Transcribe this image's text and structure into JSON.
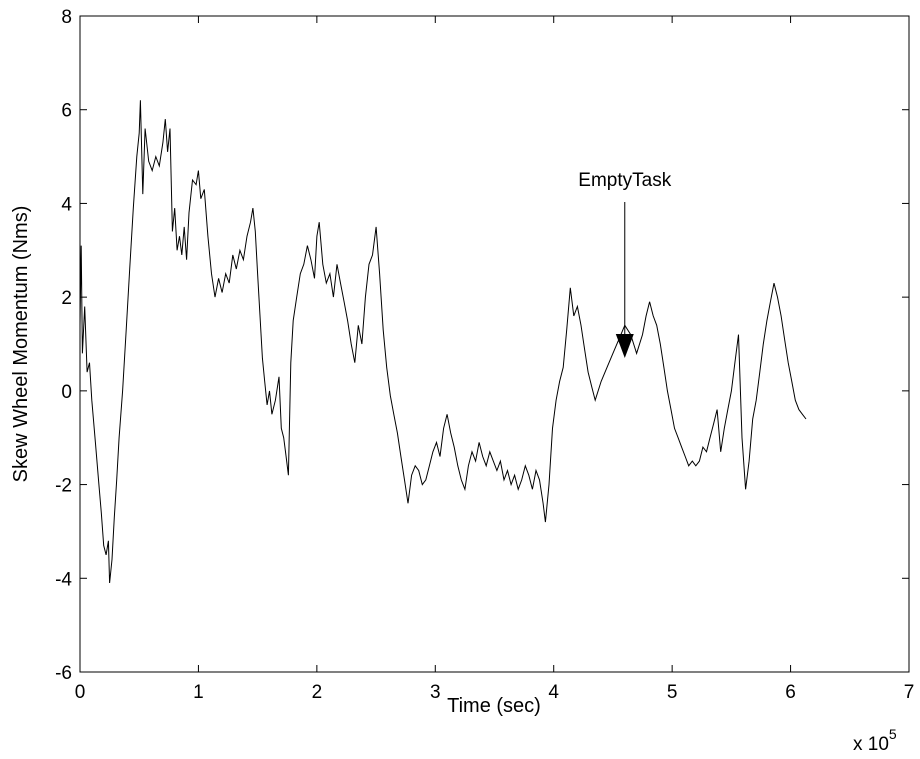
{
  "chart_data": {
    "type": "line",
    "title": "",
    "xlabel": "Time (sec)",
    "ylabel": "Skew Wheel Momentum (Nms)",
    "xlim": [
      0,
      7
    ],
    "ylim": [
      -6,
      8
    ],
    "x_scale_note": {
      "base": "x 10",
      "exponent": "5"
    },
    "xticks": [
      0,
      1,
      2,
      3,
      4,
      5,
      6,
      7
    ],
    "yticks": [
      -6,
      -4,
      -2,
      0,
      2,
      4,
      6,
      8
    ],
    "xtick_labels": [
      "0",
      "1",
      "2",
      "3",
      "4",
      "5",
      "6",
      "7"
    ],
    "ytick_labels": [
      "-6",
      "-4",
      "-2",
      "0",
      "2",
      "4",
      "6",
      "8"
    ],
    "grid": false,
    "line_color": "#000000",
    "series": [
      {
        "points": [
          [
            0.0,
            1.4
          ],
          [
            0.01,
            3.1
          ],
          [
            0.02,
            0.8
          ],
          [
            0.04,
            1.8
          ],
          [
            0.06,
            0.4
          ],
          [
            0.08,
            0.6
          ],
          [
            0.1,
            -0.2
          ],
          [
            0.13,
            -1.1
          ],
          [
            0.16,
            -2.0
          ],
          [
            0.18,
            -2.6
          ],
          [
            0.2,
            -3.3
          ],
          [
            0.22,
            -3.5
          ],
          [
            0.24,
            -3.2
          ],
          [
            0.25,
            -4.1
          ],
          [
            0.27,
            -3.6
          ],
          [
            0.29,
            -2.7
          ],
          [
            0.31,
            -1.9
          ],
          [
            0.33,
            -1.0
          ],
          [
            0.36,
            0.0
          ],
          [
            0.39,
            1.3
          ],
          [
            0.42,
            2.6
          ],
          [
            0.45,
            3.9
          ],
          [
            0.48,
            5.0
          ],
          [
            0.5,
            5.5
          ],
          [
            0.51,
            6.2
          ],
          [
            0.53,
            4.2
          ],
          [
            0.55,
            5.6
          ],
          [
            0.58,
            4.9
          ],
          [
            0.61,
            4.7
          ],
          [
            0.64,
            5.0
          ],
          [
            0.67,
            4.8
          ],
          [
            0.7,
            5.3
          ],
          [
            0.72,
            5.8
          ],
          [
            0.74,
            5.1
          ],
          [
            0.76,
            5.6
          ],
          [
            0.78,
            3.4
          ],
          [
            0.8,
            3.9
          ],
          [
            0.82,
            3.0
          ],
          [
            0.84,
            3.3
          ],
          [
            0.86,
            2.9
          ],
          [
            0.88,
            3.5
          ],
          [
            0.9,
            2.8
          ],
          [
            0.92,
            3.8
          ],
          [
            0.95,
            4.5
          ],
          [
            0.98,
            4.4
          ],
          [
            1.0,
            4.7
          ],
          [
            1.02,
            4.1
          ],
          [
            1.05,
            4.3
          ],
          [
            1.08,
            3.3
          ],
          [
            1.11,
            2.5
          ],
          [
            1.14,
            2.0
          ],
          [
            1.17,
            2.4
          ],
          [
            1.2,
            2.1
          ],
          [
            1.23,
            2.5
          ],
          [
            1.26,
            2.3
          ],
          [
            1.29,
            2.9
          ],
          [
            1.32,
            2.6
          ],
          [
            1.35,
            3.0
          ],
          [
            1.38,
            2.8
          ],
          [
            1.41,
            3.3
          ],
          [
            1.44,
            3.6
          ],
          [
            1.46,
            3.9
          ],
          [
            1.48,
            3.4
          ],
          [
            1.5,
            2.5
          ],
          [
            1.52,
            1.6
          ],
          [
            1.54,
            0.7
          ],
          [
            1.56,
            0.2
          ],
          [
            1.58,
            -0.3
          ],
          [
            1.6,
            0.0
          ],
          [
            1.62,
            -0.5
          ],
          [
            1.65,
            -0.2
          ],
          [
            1.68,
            0.3
          ],
          [
            1.7,
            -0.8
          ],
          [
            1.72,
            -1.0
          ],
          [
            1.74,
            -1.4
          ],
          [
            1.76,
            -1.8
          ],
          [
            1.78,
            0.6
          ],
          [
            1.8,
            1.5
          ],
          [
            1.83,
            2.0
          ],
          [
            1.86,
            2.5
          ],
          [
            1.89,
            2.7
          ],
          [
            1.92,
            3.1
          ],
          [
            1.95,
            2.8
          ],
          [
            1.98,
            2.4
          ],
          [
            2.0,
            3.3
          ],
          [
            2.02,
            3.6
          ],
          [
            2.05,
            2.7
          ],
          [
            2.08,
            2.3
          ],
          [
            2.11,
            2.5
          ],
          [
            2.14,
            2.0
          ],
          [
            2.17,
            2.7
          ],
          [
            2.2,
            2.3
          ],
          [
            2.23,
            1.9
          ],
          [
            2.26,
            1.5
          ],
          [
            2.29,
            1.0
          ],
          [
            2.32,
            0.6
          ],
          [
            2.35,
            1.4
          ],
          [
            2.38,
            1.0
          ],
          [
            2.41,
            2.0
          ],
          [
            2.44,
            2.7
          ],
          [
            2.47,
            2.9
          ],
          [
            2.5,
            3.5
          ],
          [
            2.53,
            2.5
          ],
          [
            2.56,
            1.3
          ],
          [
            2.59,
            0.5
          ],
          [
            2.62,
            -0.1
          ],
          [
            2.65,
            -0.5
          ],
          [
            2.68,
            -0.9
          ],
          [
            2.71,
            -1.4
          ],
          [
            2.74,
            -1.9
          ],
          [
            2.77,
            -2.4
          ],
          [
            2.8,
            -1.8
          ],
          [
            2.83,
            -1.6
          ],
          [
            2.86,
            -1.7
          ],
          [
            2.89,
            -2.0
          ],
          [
            2.92,
            -1.9
          ],
          [
            2.95,
            -1.6
          ],
          [
            2.98,
            -1.3
          ],
          [
            3.01,
            -1.1
          ],
          [
            3.04,
            -1.4
          ],
          [
            3.07,
            -0.8
          ],
          [
            3.1,
            -0.5
          ],
          [
            3.13,
            -0.9
          ],
          [
            3.16,
            -1.2
          ],
          [
            3.19,
            -1.6
          ],
          [
            3.22,
            -1.9
          ],
          [
            3.25,
            -2.1
          ],
          [
            3.28,
            -1.6
          ],
          [
            3.31,
            -1.3
          ],
          [
            3.34,
            -1.5
          ],
          [
            3.37,
            -1.1
          ],
          [
            3.4,
            -1.4
          ],
          [
            3.43,
            -1.6
          ],
          [
            3.46,
            -1.3
          ],
          [
            3.49,
            -1.5
          ],
          [
            3.52,
            -1.7
          ],
          [
            3.55,
            -1.5
          ],
          [
            3.58,
            -1.9
          ],
          [
            3.61,
            -1.7
          ],
          [
            3.64,
            -2.0
          ],
          [
            3.67,
            -1.8
          ],
          [
            3.7,
            -2.1
          ],
          [
            3.73,
            -1.9
          ],
          [
            3.76,
            -1.6
          ],
          [
            3.79,
            -1.8
          ],
          [
            3.82,
            -2.1
          ],
          [
            3.85,
            -1.7
          ],
          [
            3.88,
            -1.9
          ],
          [
            3.91,
            -2.4
          ],
          [
            3.93,
            -2.8
          ],
          [
            3.96,
            -2.0
          ],
          [
            3.99,
            -0.8
          ],
          [
            4.02,
            -0.2
          ],
          [
            4.05,
            0.2
          ],
          [
            4.08,
            0.5
          ],
          [
            4.11,
            1.3
          ],
          [
            4.14,
            2.2
          ],
          [
            4.17,
            1.6
          ],
          [
            4.2,
            1.8
          ],
          [
            4.23,
            1.4
          ],
          [
            4.26,
            0.9
          ],
          [
            4.29,
            0.4
          ],
          [
            4.32,
            0.1
          ],
          [
            4.35,
            -0.2
          ],
          [
            4.4,
            0.2
          ],
          [
            4.45,
            0.5
          ],
          [
            4.5,
            0.8
          ],
          [
            4.55,
            1.1
          ],
          [
            4.6,
            1.4
          ],
          [
            4.65,
            1.2
          ],
          [
            4.7,
            0.8
          ],
          [
            4.75,
            1.2
          ],
          [
            4.78,
            1.6
          ],
          [
            4.81,
            1.9
          ],
          [
            4.84,
            1.6
          ],
          [
            4.87,
            1.4
          ],
          [
            4.9,
            1.0
          ],
          [
            4.93,
            0.5
          ],
          [
            4.96,
            0.0
          ],
          [
            4.99,
            -0.4
          ],
          [
            5.02,
            -0.8
          ],
          [
            5.05,
            -1.0
          ],
          [
            5.08,
            -1.2
          ],
          [
            5.11,
            -1.4
          ],
          [
            5.14,
            -1.6
          ],
          [
            5.17,
            -1.5
          ],
          [
            5.2,
            -1.6
          ],
          [
            5.23,
            -1.5
          ],
          [
            5.26,
            -1.2
          ],
          [
            5.29,
            -1.3
          ],
          [
            5.32,
            -1.0
          ],
          [
            5.35,
            -0.7
          ],
          [
            5.38,
            -0.4
          ],
          [
            5.41,
            -1.3
          ],
          [
            5.44,
            -0.8
          ],
          [
            5.47,
            -0.4
          ],
          [
            5.5,
            0.0
          ],
          [
            5.53,
            0.6
          ],
          [
            5.56,
            1.2
          ],
          [
            5.59,
            -1.0
          ],
          [
            5.62,
            -2.1
          ],
          [
            5.65,
            -1.5
          ],
          [
            5.68,
            -0.6
          ],
          [
            5.71,
            -0.2
          ],
          [
            5.74,
            0.4
          ],
          [
            5.77,
            1.0
          ],
          [
            5.8,
            1.5
          ],
          [
            5.83,
            1.9
          ],
          [
            5.86,
            2.3
          ],
          [
            5.89,
            2.0
          ],
          [
            5.92,
            1.6
          ],
          [
            5.95,
            1.1
          ],
          [
            5.98,
            0.6
          ],
          [
            6.01,
            0.2
          ],
          [
            6.04,
            -0.2
          ],
          [
            6.07,
            -0.4
          ],
          [
            6.1,
            -0.5
          ],
          [
            6.13,
            -0.6
          ]
        ]
      }
    ],
    "annotations": [
      {
        "text": "EmptyTask",
        "label_at": [
          4.6,
          4.2
        ],
        "arrow_tip": [
          4.6,
          0.7
        ]
      }
    ]
  }
}
